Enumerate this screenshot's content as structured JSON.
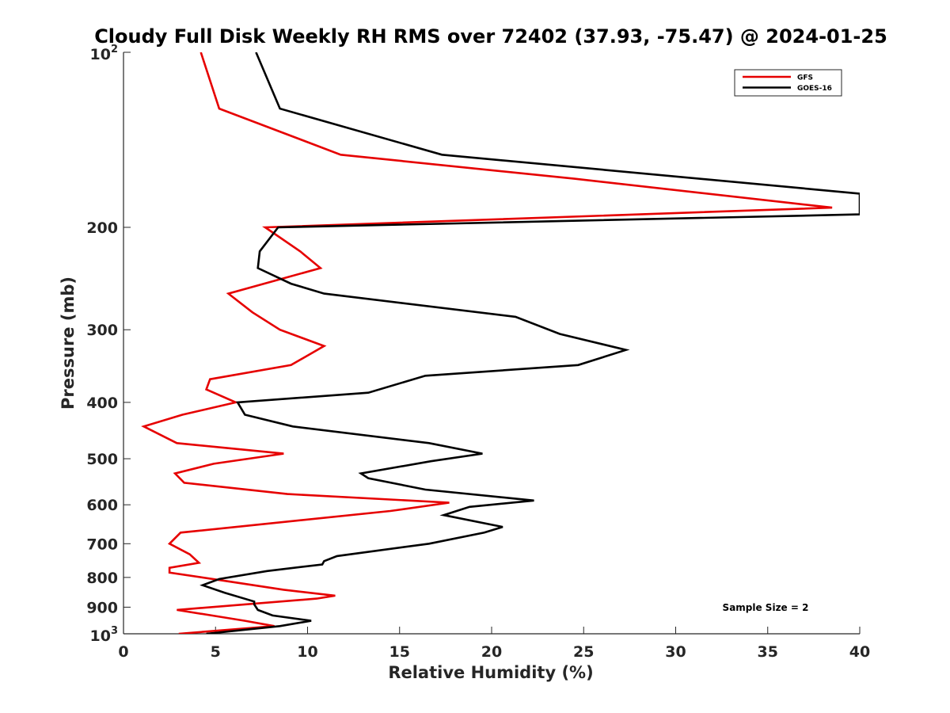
{
  "chart_data": {
    "type": "line",
    "title": "Cloudy Full Disk Weekly RH RMS over 72402 (37.93, -75.47) @ 2024-01-25",
    "xlabel": "Relative Humidity (%)",
    "ylabel": "Pressure (mb)",
    "xlim": [
      0,
      40
    ],
    "ylim": [
      100,
      1000
    ],
    "yscale": "log",
    "y_reversed": true,
    "x_ticks": [
      "0",
      "5",
      "10",
      "15",
      "20",
      "25",
      "30",
      "35",
      "40"
    ],
    "y_ticks": [
      {
        "value": 100,
        "base": "10",
        "exp": "2"
      },
      {
        "value": 200,
        "label": "200"
      },
      {
        "value": 300,
        "label": "300"
      },
      {
        "value": 400,
        "label": "400"
      },
      {
        "value": 500,
        "label": "500"
      },
      {
        "value": 600,
        "label": "600"
      },
      {
        "value": 700,
        "label": "700"
      },
      {
        "value": 800,
        "label": "800"
      },
      {
        "value": 900,
        "label": "900"
      },
      {
        "value": 1000,
        "base": "10",
        "exp": "3"
      }
    ],
    "grid": false,
    "legend_position": "top-right",
    "annotation": "Sample Size = 2",
    "series": [
      {
        "name": "GFS",
        "color": "#e60000",
        "points": [
          [
            4.2,
            100
          ],
          [
            5.2,
            125
          ],
          [
            11.8,
            150
          ],
          [
            24.5,
            165
          ],
          [
            38.5,
            185
          ],
          [
            7.7,
            200
          ],
          [
            9.6,
            220
          ],
          [
            10.7,
            235
          ],
          [
            5.7,
            260
          ],
          [
            7.0,
            280
          ],
          [
            8.5,
            300
          ],
          [
            10.9,
            320
          ],
          [
            9.1,
            345
          ],
          [
            4.7,
            365
          ],
          [
            4.5,
            380
          ],
          [
            6.1,
            400
          ],
          [
            3.2,
            420
          ],
          [
            1.1,
            440
          ],
          [
            2.9,
            470
          ],
          [
            8.7,
            490
          ],
          [
            4.9,
            510
          ],
          [
            2.8,
            530
          ],
          [
            3.3,
            550
          ],
          [
            8.9,
            575
          ],
          [
            17.7,
            595
          ],
          [
            14.5,
            615
          ],
          [
            3.1,
            670
          ],
          [
            2.5,
            700
          ],
          [
            3.6,
            730
          ],
          [
            4.1,
            755
          ],
          [
            2.5,
            770
          ],
          [
            2.5,
            785
          ],
          [
            5.4,
            810
          ],
          [
            8.7,
            840
          ],
          [
            11.5,
            860
          ],
          [
            10.5,
            870
          ],
          [
            2.9,
            910
          ],
          [
            4.8,
            930
          ],
          [
            6.6,
            950
          ],
          [
            8.2,
            970
          ],
          [
            3.0,
            1000
          ]
        ]
      },
      {
        "name": "GOES-16",
        "color": "#000000",
        "points": [
          [
            7.2,
            100
          ],
          [
            8.5,
            125
          ],
          [
            17.3,
            150
          ],
          [
            40.0,
            175
          ],
          [
            40.0,
            190
          ],
          [
            8.4,
            200
          ],
          [
            7.4,
            220
          ],
          [
            7.3,
            235
          ],
          [
            9.1,
            250
          ],
          [
            10.9,
            260
          ],
          [
            21.3,
            285
          ],
          [
            23.7,
            305
          ],
          [
            27.3,
            325
          ],
          [
            24.7,
            345
          ],
          [
            16.4,
            360
          ],
          [
            13.3,
            385
          ],
          [
            6.2,
            400
          ],
          [
            6.6,
            420
          ],
          [
            9.2,
            440
          ],
          [
            16.6,
            470
          ],
          [
            19.5,
            490
          ],
          [
            16.7,
            505
          ],
          [
            12.9,
            530
          ],
          [
            13.3,
            540
          ],
          [
            16.4,
            565
          ],
          [
            22.3,
            590
          ],
          [
            18.8,
            605
          ],
          [
            17.4,
            625
          ],
          [
            20.6,
            655
          ],
          [
            19.6,
            670
          ],
          [
            16.6,
            700
          ],
          [
            11.6,
            735
          ],
          [
            10.9,
            750
          ],
          [
            10.8,
            760
          ],
          [
            7.8,
            780
          ],
          [
            5.2,
            805
          ],
          [
            4.3,
            825
          ],
          [
            5.5,
            850
          ],
          [
            7.1,
            880
          ],
          [
            7.1,
            890
          ],
          [
            7.3,
            910
          ],
          [
            8.1,
            930
          ],
          [
            10.2,
            950
          ],
          [
            8.5,
            970
          ],
          [
            4.5,
            1000
          ]
        ]
      }
    ]
  }
}
